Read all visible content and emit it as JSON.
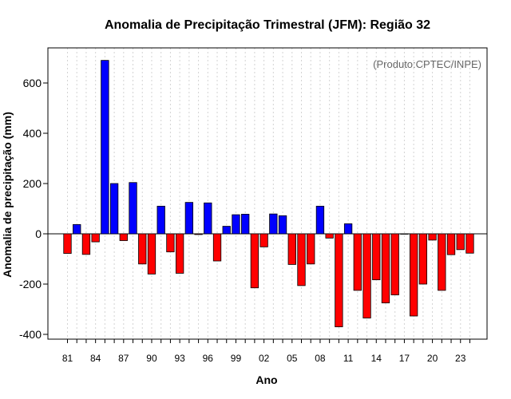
{
  "chart_data": {
    "type": "bar",
    "title": "Anomalia de Precipitação Trimestral (JFM): Região 32",
    "xlabel": "Ano",
    "ylabel": "Anomalia de precipitação (mm)",
    "note": "(Produto:CPTEC/INPE)",
    "ylim": [
      -435,
      745
    ],
    "y_ticks": [
      -400,
      -200,
      0,
      200,
      400,
      600
    ],
    "x_tick_labels": [
      "81",
      "84",
      "87",
      "90",
      "93",
      "96",
      "99",
      "02",
      "05",
      "08",
      "11",
      "14",
      "17",
      "20",
      "23"
    ],
    "categories": [
      "1981",
      "1982",
      "1983",
      "1984",
      "1985",
      "1986",
      "1987",
      "1988",
      "1989",
      "1990",
      "1991",
      "1992",
      "1993",
      "1994",
      "1995",
      "1996",
      "1997",
      "1998",
      "1999",
      "2000",
      "2001",
      "2002",
      "2003",
      "2004",
      "2005",
      "2006",
      "2007",
      "2008",
      "2009",
      "2010",
      "2011",
      "2012",
      "2013",
      "2014",
      "2015",
      "2016",
      "2017",
      "2018",
      "2019",
      "2020",
      "2021",
      "2022",
      "2023",
      "2024"
    ],
    "values": [
      -78,
      37,
      -82,
      -32,
      690,
      200,
      -27,
      204,
      -120,
      -160,
      110,
      -72,
      -157,
      125,
      -3,
      123,
      -108,
      30,
      76,
      78,
      -215,
      -52,
      79,
      72,
      -122,
      -206,
      -120,
      110,
      -17,
      -370,
      40,
      -225,
      -335,
      -183,
      -275,
      -243,
      0,
      -327,
      -200,
      -25,
      -225,
      -83,
      -63,
      -77
    ],
    "colors": {
      "positive": "#0000ff",
      "negative": "#ff0000"
    },
    "grid": true
  }
}
